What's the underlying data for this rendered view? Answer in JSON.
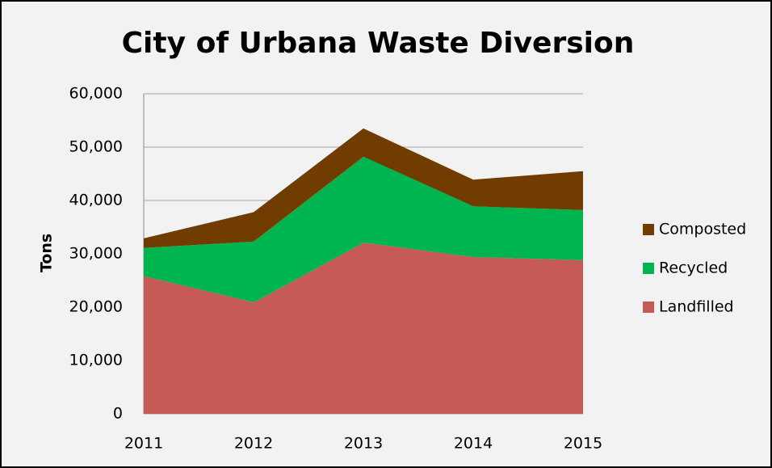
{
  "chart_data": {
    "type": "stacked_area",
    "title": "City of Urbana Waste Diversion",
    "y_label": "Tons",
    "categories": [
      "2011",
      "2012",
      "2013",
      "2014",
      "2015"
    ],
    "series": [
      {
        "name": "Landfilled",
        "color": "#c55a56",
        "values": [
          25800,
          20900,
          32100,
          29400,
          28800
        ]
      },
      {
        "name": "Recycled",
        "color": "#00b550",
        "values": [
          5300,
          11400,
          16100,
          9500,
          9400
        ]
      },
      {
        "name": "Composted",
        "color": "#703c00",
        "values": [
          1800,
          5500,
          5300,
          5000,
          7300
        ]
      }
    ],
    "ylim": [
      0,
      60000
    ],
    "yticks": [
      0,
      {
        "value": 10000,
        "label": "10,000"
      },
      {
        "value": 20000,
        "label": "20,000"
      },
      {
        "value": 30000,
        "label": "30,000"
      },
      {
        "value": 40000,
        "label": "40,000"
      },
      {
        "value": 50000,
        "label": "50,000"
      },
      {
        "value": 60000,
        "label": "60,000"
      }
    ],
    "grid": true,
    "legend": "right"
  }
}
